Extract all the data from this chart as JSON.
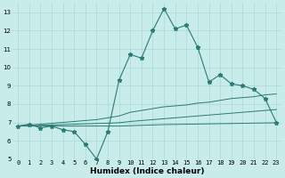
{
  "x": [
    0,
    1,
    2,
    3,
    4,
    5,
    6,
    7,
    8,
    9,
    10,
    11,
    12,
    13,
    14,
    15,
    16,
    17,
    18,
    19,
    20,
    21,
    22,
    23
  ],
  "y_main": [
    6.8,
    6.9,
    6.7,
    6.8,
    6.6,
    6.5,
    5.8,
    5.0,
    6.5,
    9.3,
    10.7,
    10.5,
    12.0,
    13.2,
    12.1,
    12.3,
    11.1,
    9.2,
    9.6,
    9.1,
    9.0,
    8.8,
    8.3,
    7.0
  ],
  "y_line1": [
    6.8,
    6.85,
    6.9,
    6.95,
    7.0,
    7.05,
    7.1,
    7.15,
    7.25,
    7.35,
    7.55,
    7.65,
    7.75,
    7.85,
    7.9,
    7.95,
    8.05,
    8.1,
    8.2,
    8.3,
    8.35,
    8.4,
    8.5,
    8.55
  ],
  "y_line2": [
    6.8,
    6.82,
    6.84,
    6.86,
    6.88,
    6.9,
    6.92,
    6.94,
    6.96,
    6.98,
    7.05,
    7.1,
    7.15,
    7.2,
    7.25,
    7.3,
    7.35,
    7.4,
    7.45,
    7.5,
    7.55,
    7.6,
    7.65,
    7.7
  ],
  "y_line3": [
    6.8,
    6.8,
    6.8,
    6.8,
    6.8,
    6.8,
    6.8,
    6.8,
    6.8,
    6.8,
    6.82,
    6.84,
    6.86,
    6.88,
    6.89,
    6.9,
    6.91,
    6.92,
    6.93,
    6.94,
    6.95,
    6.96,
    6.97,
    6.98
  ],
  "bg_color": "#c8ece9",
  "grid_color": "#aad8d4",
  "line_color": "#2a7a76",
  "marker": "*",
  "markersize": 3.5,
  "xlabel": "Humidex (Indice chaleur)",
  "ylim": [
    5,
    13.5
  ],
  "xlim": [
    -0.5,
    23.5
  ],
  "yticks": [
    5,
    6,
    7,
    8,
    9,
    10,
    11,
    12,
    13
  ],
  "xticks": [
    0,
    1,
    2,
    3,
    4,
    5,
    6,
    7,
    8,
    9,
    10,
    11,
    12,
    13,
    14,
    15,
    16,
    17,
    18,
    19,
    20,
    21,
    22,
    23
  ],
  "tick_fontsize": 5.0,
  "xlabel_fontsize": 6.5
}
